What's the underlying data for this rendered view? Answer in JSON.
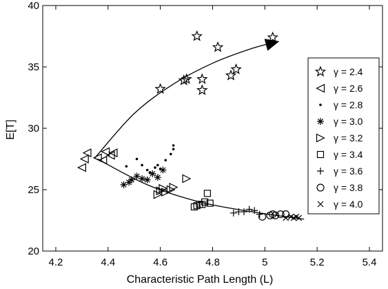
{
  "chart_data": {
    "type": "scatter",
    "xlabel": "Characteristic Path Length (L)",
    "ylabel": "E[T]",
    "xlim": [
      4.15,
      5.45
    ],
    "ylim": [
      20,
      40
    ],
    "x_ticks": [
      "4.2",
      "4.4",
      "4.6",
      "4.8",
      "5",
      "5.2",
      "5.4"
    ],
    "x_tick_values": [
      4.2,
      4.4,
      4.6,
      4.8,
      5.0,
      5.2,
      5.4
    ],
    "y_ticks": [
      "20",
      "25",
      "30",
      "35",
      "40"
    ],
    "y_tick_values": [
      20,
      25,
      30,
      35,
      40
    ],
    "grid": false,
    "legend_position": "right",
    "series": [
      {
        "name": "γ = 2.4",
        "marker": "star",
        "points": [
          [
            4.74,
            37.5
          ],
          [
            4.82,
            36.6
          ],
          [
            5.03,
            37.4
          ],
          [
            4.6,
            33.2
          ],
          [
            4.69,
            33.9
          ],
          [
            4.7,
            34.0
          ],
          [
            4.76,
            34.0
          ],
          [
            4.76,
            33.1
          ],
          [
            4.87,
            34.3
          ],
          [
            4.89,
            34.8
          ]
        ]
      },
      {
        "name": "γ = 2.6",
        "marker": "triangle-left",
        "points": [
          [
            4.3,
            26.8
          ],
          [
            4.31,
            27.5
          ],
          [
            4.32,
            28.0
          ],
          [
            4.36,
            27.6
          ],
          [
            4.38,
            27.4
          ],
          [
            4.39,
            28.1
          ],
          [
            4.41,
            27.8
          ],
          [
            4.42,
            28.0
          ]
        ]
      },
      {
        "name": "γ = 2.8",
        "marker": "dot",
        "points": [
          [
            4.47,
            26.9
          ],
          [
            4.51,
            27.5
          ],
          [
            4.53,
            27.0
          ],
          [
            4.55,
            26.6
          ],
          [
            4.56,
            26.4
          ],
          [
            4.58,
            26.8
          ],
          [
            4.59,
            27.0
          ],
          [
            4.6,
            26.7
          ],
          [
            4.62,
            27.4
          ],
          [
            4.64,
            27.9
          ],
          [
            4.65,
            28.3
          ],
          [
            4.65,
            28.6
          ]
        ]
      },
      {
        "name": "γ = 3.0",
        "marker": "asterisk",
        "points": [
          [
            4.46,
            25.4
          ],
          [
            4.48,
            25.6
          ],
          [
            4.49,
            25.8
          ],
          [
            4.51,
            26.1
          ],
          [
            4.53,
            25.9
          ],
          [
            4.55,
            25.8
          ],
          [
            4.57,
            26.3
          ],
          [
            4.59,
            26.0
          ],
          [
            4.61,
            26.6
          ]
        ]
      },
      {
        "name": "γ = 3.2",
        "marker": "triangle-right",
        "points": [
          [
            4.59,
            24.6
          ],
          [
            4.6,
            24.9
          ],
          [
            4.61,
            25.1
          ],
          [
            4.62,
            24.8
          ],
          [
            4.64,
            25.0
          ],
          [
            4.65,
            25.2
          ],
          [
            4.7,
            25.9
          ]
        ]
      },
      {
        "name": "γ = 3.4",
        "marker": "square",
        "points": [
          [
            4.73,
            23.6
          ],
          [
            4.74,
            23.7
          ],
          [
            4.75,
            23.8
          ],
          [
            4.76,
            23.8
          ],
          [
            4.77,
            24.0
          ],
          [
            4.78,
            24.7
          ],
          [
            4.79,
            23.9
          ]
        ]
      },
      {
        "name": "γ = 3.6",
        "marker": "plus",
        "points": [
          [
            4.88,
            23.1
          ],
          [
            4.9,
            23.2
          ],
          [
            4.92,
            23.2
          ],
          [
            4.94,
            23.4
          ],
          [
            4.96,
            23.3
          ],
          [
            4.98,
            23.0
          ]
        ]
      },
      {
        "name": "γ = 3.8",
        "marker": "circle",
        "points": [
          [
            4.99,
            22.8
          ],
          [
            5.02,
            22.9
          ],
          [
            5.03,
            23.0
          ],
          [
            5.04,
            22.9
          ],
          [
            5.06,
            23.0
          ],
          [
            5.08,
            23.0
          ]
        ]
      },
      {
        "name": "γ = 4.0",
        "marker": "cross",
        "points": [
          [
            5.08,
            22.7
          ],
          [
            5.1,
            22.8
          ],
          [
            5.11,
            22.7
          ],
          [
            5.12,
            22.8
          ],
          [
            5.13,
            22.7
          ]
        ]
      }
    ],
    "trend_curves": [
      {
        "points": [
          [
            4.35,
            27.6
          ],
          [
            4.5,
            31.2
          ],
          [
            4.65,
            33.6
          ],
          [
            4.8,
            35.3
          ],
          [
            4.95,
            36.5
          ],
          [
            5.04,
            37.0
          ]
        ],
        "arrow_at_end": true
      },
      {
        "points": [
          [
            4.36,
            27.5
          ],
          [
            4.55,
            25.4
          ],
          [
            4.75,
            24.0
          ],
          [
            4.95,
            23.2
          ],
          [
            5.15,
            22.6
          ]
        ],
        "arrow_at_end": false
      }
    ]
  }
}
